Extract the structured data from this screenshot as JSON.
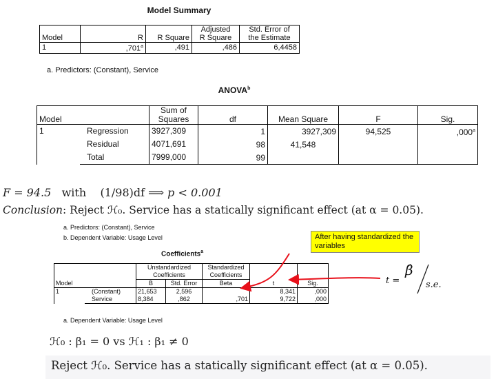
{
  "model_summary": {
    "title": "Model Summary",
    "headers": [
      "Model",
      "R",
      "R Square",
      "Adjusted R Square",
      "Std. Error of the Estimate"
    ],
    "headers_line1": [
      "",
      "",
      "",
      "Adjusted",
      "Std. Error of"
    ],
    "headers_line2": [
      "Model",
      "R",
      "R Square",
      "R Square",
      "the Estimate"
    ],
    "row": {
      "model": "1",
      "r": ",701",
      "r_sup": "a",
      "r_square": ",491",
      "adj_r_square": ",486",
      "std_error": "6,4458"
    },
    "footnote": "a. Predictors: (Constant), Service"
  },
  "anova": {
    "title": "ANOVA",
    "title_sup": "b",
    "headers_line1": [
      "",
      "",
      "Sum of",
      "",
      "",
      "",
      ""
    ],
    "headers_line2": [
      "Model",
      "",
      "Squares",
      "df",
      "Mean Square",
      "F",
      "Sig."
    ],
    "model": "1",
    "rows": [
      {
        "label": "Regression",
        "ss": "3927,309",
        "df": "1",
        "ms": "3927,309",
        "f": "94,525",
        "sig": ",000",
        "sig_sup": "a"
      },
      {
        "label": "Residual",
        "ss": "4071,691",
        "df": "98",
        "ms": "41,548",
        "f": "",
        "sig": ""
      },
      {
        "label": "Total",
        "ss": "7999,000",
        "df": "99",
        "ms": "",
        "f": "",
        "sig": ""
      }
    ]
  },
  "math": {
    "f_line_lhs": "F = 94.5",
    "f_line_with": "with",
    "f_line_df": "(1/98)df",
    "f_line_implies": "⟹",
    "f_line_p": "p < 0.001",
    "conclusion_label": "Conclusion",
    "conclusion_text": ": Reject ℋ₀. Service has a statically significant effect (at α = 0.05).",
    "hypothesis": "ℋ₀ : β₁ = 0  vs  ℋ₁ : β₁ ≠ 0",
    "final": "Reject ℋ₀. Service has a statically significant effect (at α = 0.05)."
  },
  "coefficients": {
    "footnote_a": "a. Predictors: (Constant), Service",
    "footnote_b": "b. Dependent Variable: Usage Level",
    "title": "Coefficients",
    "title_sup": "a",
    "group_unstd_1": "Unstandardized",
    "group_unstd_2": "Coefficients",
    "group_std_1": "Standardized",
    "group_std_2": "Coefficients",
    "headers": [
      "Model",
      "",
      "B",
      "Std. Error",
      "Beta",
      "t",
      "Sig."
    ],
    "model": "1",
    "rows": [
      {
        "label": "(Constant)",
        "b": "21,653",
        "se": "2,596",
        "beta": "",
        "t": "8,341",
        "sig": ",000"
      },
      {
        "label": "Service",
        "b": "8,384",
        "se": ",862",
        "beta": ",701",
        "t": "9,722",
        "sig": ",000"
      }
    ],
    "footnote": "a. Dependent Variable: Usage Level"
  },
  "annotation": {
    "callout": "After having standardized the variables",
    "t_formula_lhs": "t =",
    "t_formula_num": "β̂",
    "t_formula_den": "s.e."
  },
  "colors": {
    "callout_bg": "#ffff00",
    "arrow": "#e8101a"
  }
}
